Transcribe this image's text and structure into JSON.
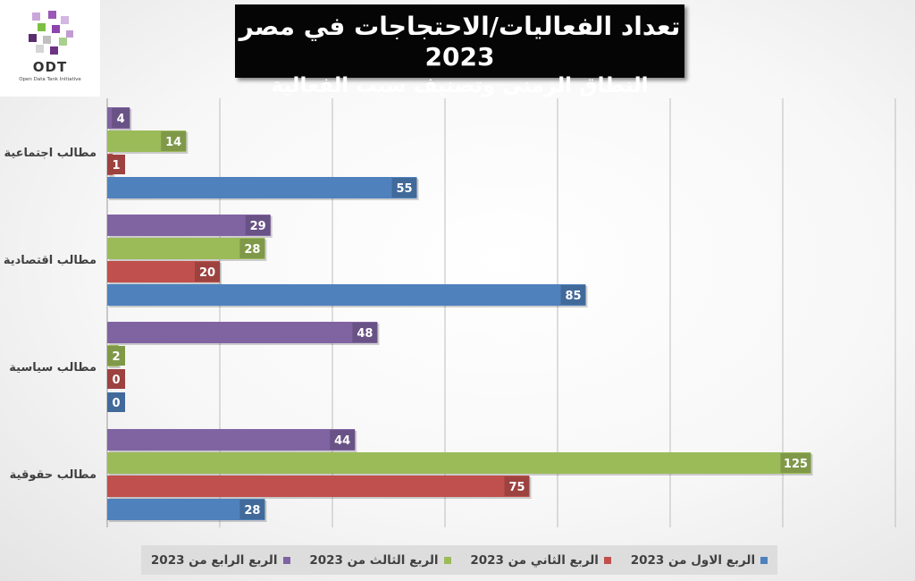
{
  "logo": {
    "name": "ODT",
    "tagline": "Open Data Tank Initiative"
  },
  "chart_data": {
    "type": "bar",
    "orientation": "horizontal",
    "title": "تعداد الفعاليات/الاحتجاجات في مصر 2023",
    "subtitle": "النطاق الزمني وتصنيف سبب الفعالية",
    "categories": [
      "مطالب اجتماعية",
      "مطالب اقتصادية",
      "مطالب سياسية",
      "مطالب حقوقية"
    ],
    "series": [
      {
        "name": "الربع الرابع من 2023",
        "color": "#8064a2",
        "values": [
          4,
          29,
          48,
          44
        ]
      },
      {
        "name": "الربع الثالث من 2023",
        "color": "#9bbb59",
        "values": [
          14,
          28,
          2,
          125
        ]
      },
      {
        "name": "الربع الثاني من 2023",
        "color": "#c0504d",
        "values": [
          1,
          20,
          0,
          75
        ]
      },
      {
        "name": "الربع الاول من 2023",
        "color": "#4f81bd",
        "values": [
          55,
          85,
          0,
          28
        ]
      }
    ],
    "xlim": [
      0,
      140
    ],
    "grid": true,
    "legend_position": "bottom",
    "data_labels": true
  }
}
